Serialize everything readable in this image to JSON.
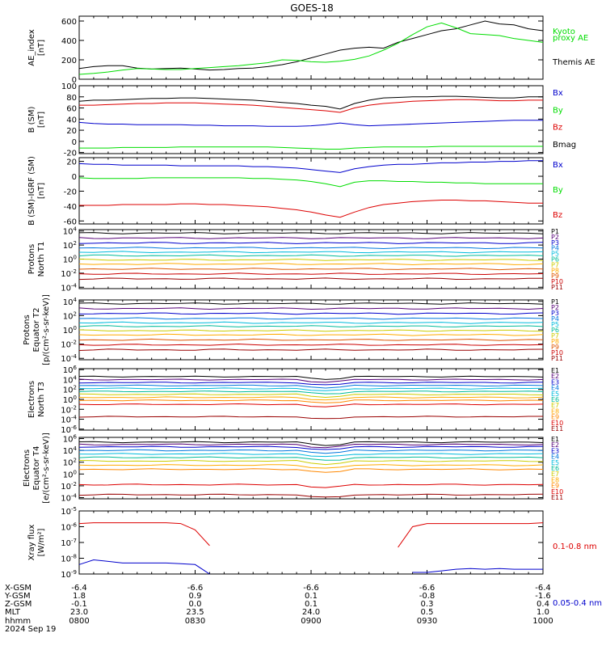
{
  "title": "GOES-18",
  "footer": {
    "row_labels": [
      "X-GSM",
      "Y-GSM",
      "Z-GSM",
      "MLT",
      "hhmm",
      "2024 Sep 19"
    ],
    "columns": [
      [
        "-6.4",
        "1.8",
        "-0.1",
        "23.0",
        "0800"
      ],
      [
        "-6.6",
        "0.9",
        "0.0",
        "23.5",
        "0830"
      ],
      [
        "-6.6",
        "0.1",
        "0.1",
        "24.0",
        "0900"
      ],
      [
        "-6.6",
        "-0.8",
        "0.3",
        "0.5",
        "0930"
      ],
      [
        "-6.4",
        "-1.6",
        "0.4",
        "1.0",
        "1000"
      ]
    ]
  },
  "colors": {
    "black": "#000000",
    "green": "#00dd00",
    "blue": "#0000cc",
    "red": "#dd0000",
    "p_channels": [
      "#000000",
      "#550077",
      "#0000cc",
      "#0077dd",
      "#00bbdd",
      "#00bb99",
      "#cccc00",
      "#ffaa00",
      "#dd5500",
      "#cc0000",
      "#990000"
    ],
    "e_channels": [
      "#000000",
      "#550077",
      "#0000cc",
      "#0077dd",
      "#00bbdd",
      "#00bb99",
      "#cccc00",
      "#ffaa00",
      "#ff8800",
      "#dd0000",
      "#990000"
    ]
  },
  "chart_data": [
    {
      "type": "line",
      "ylabel": [
        "AE_index",
        "[nT]"
      ],
      "ylim": [
        0,
        650
      ],
      "yticks": [
        "0",
        "200",
        "400",
        "600"
      ],
      "legend": [
        {
          "text": "Kyoto",
          "color": "green"
        },
        {
          "text": "proxy AE",
          "color": "green"
        },
        {
          "text": "Themis AE",
          "color": "black"
        }
      ],
      "series": [
        {
          "color": "black",
          "y": [
            110,
            130,
            140,
            140,
            115,
            105,
            110,
            115,
            105,
            95,
            100,
            110,
            115,
            130,
            150,
            180,
            220,
            260,
            300,
            320,
            330,
            320,
            380,
            420,
            460,
            500,
            520,
            560,
            600,
            570,
            560,
            520,
            500
          ]
        },
        {
          "color": "green",
          "y": [
            50,
            60,
            75,
            95,
            110,
            105,
            100,
            100,
            110,
            120,
            130,
            140,
            155,
            170,
            200,
            195,
            180,
            175,
            185,
            205,
            240,
            300,
            370,
            460,
            540,
            580,
            530,
            470,
            460,
            450,
            420,
            400,
            380
          ]
        }
      ]
    },
    {
      "type": "line",
      "ylabel": [
        "B (SM)",
        "[nT]"
      ],
      "ylim": [
        -22,
        100
      ],
      "yticks": [
        "-20",
        "0",
        "20",
        "40",
        "60",
        "80",
        "100"
      ],
      "legend": [
        {
          "text": "Bx",
          "color": "blue"
        },
        {
          "text": "By",
          "color": "green"
        },
        {
          "text": "Bz",
          "color": "red"
        },
        {
          "text": "Bmag",
          "color": "black"
        }
      ],
      "series": [
        {
          "color": "black",
          "y": [
            72,
            74,
            74,
            75,
            76,
            77,
            77,
            78,
            78,
            77,
            76,
            75,
            74,
            72,
            70,
            68,
            65,
            63,
            58,
            68,
            74,
            78,
            79,
            80,
            80,
            81,
            81,
            80,
            79,
            78,
            78,
            80,
            80
          ]
        },
        {
          "color": "red",
          "y": [
            65,
            65,
            66,
            67,
            68,
            68,
            69,
            69,
            69,
            68,
            67,
            66,
            65,
            63,
            61,
            59,
            57,
            55,
            52,
            60,
            65,
            68,
            70,
            72,
            73,
            74,
            75,
            75,
            74,
            73,
            73,
            74,
            74
          ]
        },
        {
          "color": "blue",
          "y": [
            34,
            32,
            31,
            31,
            30,
            30,
            30,
            30,
            29,
            29,
            28,
            28,
            28,
            27,
            27,
            27,
            28,
            30,
            33,
            30,
            28,
            29,
            30,
            31,
            32,
            33,
            34,
            35,
            36,
            37,
            38,
            38,
            38
          ]
        },
        {
          "color": "green",
          "y": [
            -12,
            -12,
            -12,
            -11,
            -11,
            -11,
            -11,
            -10,
            -10,
            -10,
            -10,
            -10,
            -10,
            -10,
            -11,
            -12,
            -13,
            -14,
            -14,
            -12,
            -11,
            -10,
            -10,
            -10,
            -10,
            -9,
            -9,
            -9,
            -9,
            -9,
            -9,
            -9,
            -9
          ]
        }
      ]
    },
    {
      "type": "line",
      "ylabel": [
        "B (SM)-IGRF (SM)",
        "[nT]"
      ],
      "ylim": [
        -64,
        25
      ],
      "yticks": [
        "-60",
        "-40",
        "-20",
        "0",
        "20"
      ],
      "legend": [
        {
          "text": "Bx",
          "color": "blue"
        },
        {
          "text": "By",
          "color": "green"
        },
        {
          "text": "Bz",
          "color": "red"
        }
      ],
      "series": [
        {
          "color": "blue",
          "y": [
            17,
            16,
            16,
            15,
            15,
            15,
            15,
            14,
            14,
            14,
            14,
            14,
            13,
            13,
            12,
            11,
            9,
            7,
            5,
            10,
            13,
            15,
            16,
            16,
            17,
            18,
            18,
            19,
            19,
            20,
            20,
            21,
            21
          ]
        },
        {
          "color": "green",
          "y": [
            -2,
            -3,
            -3,
            -3,
            -3,
            -2,
            -2,
            -2,
            -2,
            -2,
            -2,
            -2,
            -3,
            -3,
            -4,
            -5,
            -7,
            -10,
            -14,
            -8,
            -6,
            -6,
            -7,
            -7,
            -8,
            -8,
            -9,
            -9,
            -10,
            -10,
            -10,
            -10,
            -10
          ]
        },
        {
          "color": "red",
          "y": [
            -39,
            -39,
            -39,
            -38,
            -38,
            -38,
            -38,
            -37,
            -37,
            -38,
            -38,
            -39,
            -40,
            -41,
            -43,
            -45,
            -48,
            -52,
            -55,
            -48,
            -42,
            -38,
            -36,
            -34,
            -33,
            -32,
            -32,
            -33,
            -33,
            -34,
            -35,
            -36,
            -36
          ]
        }
      ]
    },
    {
      "type": "line",
      "scale": "log",
      "ylabel": [
        "Protons",
        "North T1"
      ],
      "ylim": [
        -4.2,
        4.2
      ],
      "yticks": [
        "10^4",
        "10^2",
        "10^0",
        "10^-2",
        "10^-4"
      ],
      "legend_prefix": "P",
      "levels": [
        3.7,
        3.0,
        2.3,
        1.6,
        1.0,
        0.5,
        -0.1,
        -0.7,
        -1.4,
        -2.1,
        -2.8
      ]
    },
    {
      "type": "line",
      "scale": "log",
      "ylabel": [
        "Protons",
        "Equator T2",
        "[p/(cm²-s-sr-keV)]"
      ],
      "ylim": [
        -4.2,
        4.2
      ],
      "yticks": [
        "10^4",
        "10^2",
        "10^0",
        "10^-2",
        "10^-4"
      ],
      "legend_prefix": "P",
      "levels": [
        3.7,
        3.0,
        2.3,
        1.6,
        1.0,
        0.5,
        -0.1,
        -0.7,
        -1.4,
        -2.1,
        -2.8
      ]
    },
    {
      "type": "line",
      "scale": "log",
      "ylabel": [
        "Electrons",
        "North T3"
      ],
      "ylim": [
        -6.2,
        6.2
      ],
      "yticks": [
        "10^6",
        "10^4",
        "10^2",
        "10^0",
        "10^-2",
        "10^-4",
        "10^-6"
      ],
      "legend_prefix": "E",
      "levels": [
        4.6,
        4.0,
        3.4,
        2.8,
        2.2,
        1.6,
        1.0,
        0.4,
        -0.2,
        -1.0,
        -3.5
      ]
    },
    {
      "type": "line",
      "scale": "log",
      "ylabel": [
        "Electrons",
        "Equator T4",
        "[e/(cm²-s-sr-keV)]"
      ],
      "ylim": [
        -4.2,
        6.2
      ],
      "yticks": [
        "10^6",
        "10^4",
        "10^2",
        "10^0",
        "10^-2",
        "10^-4"
      ],
      "legend_prefix": "E",
      "levels": [
        5.4,
        5.0,
        4.6,
        4.0,
        3.4,
        2.8,
        2.2,
        1.5,
        0.8,
        -1.8,
        -3.5
      ]
    },
    {
      "type": "line",
      "scale": "log",
      "ylabel": [
        "Xray flux",
        "[W/m²]"
      ],
      "ylim": [
        -9.0,
        -5.0
      ],
      "yticks": [
        "10^-5",
        "10^-6",
        "10^-7",
        "10^-8",
        "10^-9"
      ],
      "legend": [
        {
          "text": "0.1-0.8 nm",
          "color": "red"
        },
        {
          "text": "0.05-0.4 nm",
          "color": "blue"
        }
      ],
      "series": [
        {
          "color": "red",
          "x": [
            0,
            1,
            2,
            3,
            4,
            5,
            6,
            7,
            8,
            9
          ],
          "y": [
            -5.8,
            -5.75,
            -5.75,
            -5.75,
            -5.75,
            -5.75,
            -5.75,
            -5.8,
            -6.2,
            -7.2
          ]
        },
        {
          "color": "red",
          "x": [
            22,
            23,
            24,
            25,
            26,
            27,
            28,
            29,
            30,
            31,
            32
          ],
          "y": [
            -7.3,
            -6.0,
            -5.8,
            -5.8,
            -5.8,
            -5.8,
            -5.8,
            -5.8,
            -5.8,
            -5.8,
            -5.75
          ]
        },
        {
          "color": "blue",
          "x": [
            0,
            1,
            2,
            3,
            4,
            5,
            6,
            7,
            8,
            9
          ],
          "y": [
            -8.4,
            -8.1,
            -8.2,
            -8.3,
            -8.3,
            -8.3,
            -8.3,
            -8.35,
            -8.4,
            -9.0
          ]
        },
        {
          "color": "blue",
          "x": [
            23,
            24,
            25,
            26,
            27,
            28,
            29,
            30,
            31,
            32
          ],
          "y": [
            -8.9,
            -8.9,
            -8.8,
            -8.7,
            -8.65,
            -8.7,
            -8.65,
            -8.7,
            -8.7,
            -8.7
          ]
        }
      ]
    }
  ]
}
